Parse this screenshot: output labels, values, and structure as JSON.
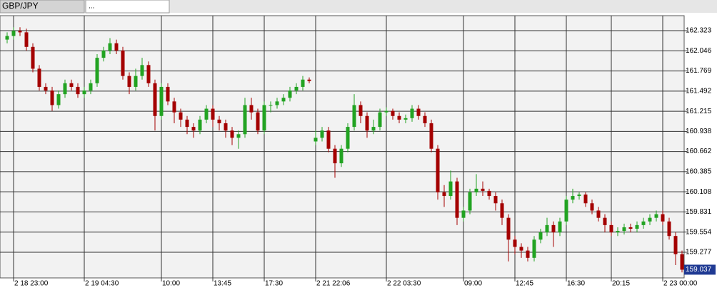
{
  "chart_data": {
    "type": "candlestick",
    "tabs": [
      "GBP/JPY",
      "..."
    ],
    "categories": [
      null,
      "2 18 23:00",
      null,
      null,
      null,
      null,
      null,
      null,
      null,
      null,
      null,
      null,
      "2 19 04:30",
      null,
      null,
      null,
      null,
      null,
      null,
      null,
      null,
      null,
      null,
      null,
      "10:00",
      null,
      null,
      null,
      null,
      null,
      null,
      null,
      "13:45",
      null,
      null,
      null,
      null,
      null,
      null,
      null,
      "17:30",
      null,
      null,
      null,
      null,
      null,
      null,
      null,
      "2 21 22:06",
      null,
      null,
      null,
      null,
      null,
      null,
      null,
      null,
      null,
      null,
      "2 22 03:30",
      null,
      null,
      null,
      null,
      null,
      null,
      null,
      null,
      null,
      null,
      null,
      "09:00",
      null,
      null,
      null,
      null,
      null,
      null,
      null,
      "12:45",
      null,
      null,
      null,
      null,
      null,
      null,
      null,
      "16:30",
      null,
      null,
      null,
      null,
      null,
      null,
      "20:15",
      null,
      null,
      null,
      null,
      null,
      null,
      null,
      "2 23 00:00",
      null,
      null,
      null
    ],
    "open": [
      162.2,
      162.25,
      162.32,
      162.3,
      162.1,
      161.8,
      161.55,
      161.5,
      161.3,
      161.45,
      161.6,
      161.55,
      161.45,
      161.5,
      161.6,
      161.95,
      162.05,
      162.15,
      162.05,
      161.7,
      161.55,
      161.7,
      161.85,
      161.6,
      161.15,
      161.55,
      161.35,
      161.2,
      161.1,
      161.0,
      160.95,
      161.1,
      161.25,
      161.1,
      161.05,
      160.95,
      160.85,
      160.9,
      161.3,
      161.2,
      160.95,
      161.3,
      161.3,
      161.35,
      161.4,
      161.5,
      161.55,
      161.65,
      160.8,
      160.85,
      160.95,
      160.7,
      160.5,
      160.7,
      161.0,
      161.3,
      161.15,
      160.95,
      161.0,
      161.2,
      161.22,
      161.15,
      161.1,
      161.12,
      161.25,
      161.15,
      161.05,
      160.7,
      160.1,
      160.05,
      160.25,
      159.75,
      159.85,
      160.1,
      160.15,
      160.12,
      160.05,
      159.95,
      159.75,
      159.45,
      159.35,
      159.3,
      159.2,
      159.45,
      159.55,
      159.65,
      159.55,
      159.7,
      160.0,
      160.05,
      160.07,
      159.95,
      159.85,
      159.75,
      159.65,
      159.55,
      159.57,
      159.62,
      159.6,
      159.65,
      159.7,
      159.75,
      159.8,
      159.7,
      159.5,
      159.25
    ],
    "high": [
      162.3,
      162.37,
      162.37,
      162.35,
      162.15,
      161.85,
      161.6,
      161.55,
      161.5,
      161.65,
      161.65,
      161.6,
      161.55,
      161.65,
      162.0,
      162.1,
      162.22,
      162.2,
      162.1,
      161.75,
      161.8,
      161.95,
      161.9,
      161.65,
      161.6,
      161.6,
      161.4,
      161.25,
      161.15,
      161.05,
      161.15,
      161.3,
      161.3,
      161.15,
      161.1,
      161.0,
      160.95,
      161.4,
      161.4,
      161.25,
      161.35,
      161.35,
      161.4,
      161.45,
      161.55,
      161.6,
      161.7,
      161.68,
      160.95,
      161.0,
      161.0,
      160.75,
      160.75,
      161.05,
      161.45,
      161.35,
      161.2,
      161.1,
      161.25,
      161.27,
      161.25,
      161.2,
      161.17,
      161.3,
      161.3,
      161.2,
      161.1,
      160.75,
      160.2,
      160.4,
      160.3,
      159.9,
      160.15,
      160.35,
      160.25,
      160.15,
      160.1,
      160.0,
      159.8,
      159.5,
      159.4,
      159.35,
      159.5,
      159.6,
      159.75,
      159.7,
      159.75,
      160.05,
      160.15,
      160.1,
      160.1,
      160.0,
      159.9,
      159.8,
      159.7,
      159.62,
      159.67,
      159.67,
      159.7,
      159.75,
      159.8,
      159.85,
      159.85,
      159.75,
      159.55,
      159.3
    ],
    "low": [
      162.15,
      162.2,
      162.25,
      162.05,
      161.75,
      161.5,
      161.45,
      161.22,
      161.25,
      161.4,
      161.5,
      161.4,
      161.4,
      161.45,
      161.55,
      161.9,
      162.0,
      162.0,
      161.65,
      161.45,
      161.5,
      161.65,
      161.55,
      160.95,
      161.1,
      161.3,
      161.05,
      161.0,
      160.9,
      160.85,
      160.9,
      161.05,
      161.0,
      160.95,
      160.85,
      160.75,
      160.7,
      160.85,
      161.1,
      160.9,
      160.9,
      161.2,
      161.25,
      161.3,
      161.35,
      161.45,
      161.5,
      161.6,
      160.75,
      160.8,
      160.65,
      160.3,
      160.45,
      160.65,
      160.95,
      161.05,
      160.85,
      160.9,
      160.95,
      161.15,
      161.1,
      161.05,
      161.05,
      161.07,
      161.1,
      161.0,
      160.65,
      160.0,
      159.9,
      160.0,
      159.65,
      159.7,
      159.8,
      160.05,
      160.05,
      160.0,
      159.85,
      159.65,
      159.15,
      159.25,
      159.2,
      159.15,
      159.15,
      159.4,
      159.5,
      159.35,
      159.5,
      159.65,
      159.95,
      160.0,
      159.9,
      159.8,
      159.7,
      159.55,
      159.5,
      159.5,
      159.52,
      159.55,
      159.55,
      159.6,
      159.65,
      159.7,
      159.65,
      159.45,
      159.1,
      159.0
    ],
    "close": [
      162.25,
      162.32,
      162.3,
      162.1,
      161.8,
      161.55,
      161.5,
      161.3,
      161.45,
      161.6,
      161.55,
      161.45,
      161.5,
      161.6,
      161.95,
      162.05,
      162.15,
      162.05,
      161.7,
      161.55,
      161.7,
      161.85,
      161.6,
      161.15,
      161.55,
      161.35,
      161.2,
      161.1,
      161.0,
      160.95,
      161.1,
      161.25,
      161.1,
      161.05,
      160.95,
      160.85,
      160.9,
      161.3,
      161.2,
      160.95,
      161.3,
      161.3,
      161.35,
      161.4,
      161.5,
      161.55,
      161.65,
      161.63,
      160.85,
      160.95,
      160.7,
      160.5,
      160.7,
      161.0,
      161.3,
      161.15,
      160.95,
      161.0,
      161.2,
      161.22,
      161.15,
      161.1,
      161.12,
      161.25,
      161.15,
      161.05,
      160.7,
      160.1,
      160.05,
      160.25,
      159.75,
      159.85,
      160.1,
      160.15,
      160.12,
      160.05,
      159.95,
      159.75,
      159.45,
      159.35,
      159.3,
      159.2,
      159.45,
      159.55,
      159.65,
      159.55,
      159.7,
      160.0,
      160.05,
      160.07,
      159.95,
      159.85,
      159.75,
      159.65,
      159.55,
      159.57,
      159.62,
      159.6,
      159.65,
      159.7,
      159.75,
      159.8,
      159.7,
      159.5,
      159.25,
      159.037
    ],
    "up_color": "#22a322",
    "down_color": "#a40000",
    "ylim": [
      158.924,
      162.529
    ],
    "yticks": [
      162.323,
      162.046,
      161.769,
      161.492,
      161.215,
      160.938,
      160.662,
      160.385,
      160.108,
      159.831,
      159.554,
      159.277
    ],
    "grid": true
  }
}
